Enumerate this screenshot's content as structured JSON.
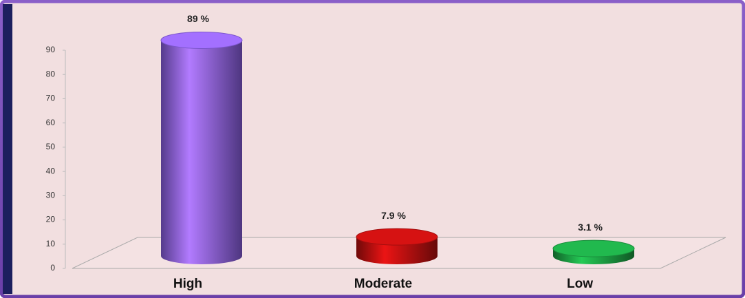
{
  "chart_data": {
    "type": "cylinder-bar",
    "categories": [
      "High",
      "Moderate",
      "Low"
    ],
    "values": [
      89,
      7.9,
      3.1
    ],
    "value_labels": [
      "89 %",
      "7.9 %",
      "3.1 %"
    ],
    "colors": [
      "#9b6bff",
      "#cc1111",
      "#1fb04a"
    ],
    "ylim": [
      0,
      90
    ],
    "yticks": [
      0,
      10,
      20,
      30,
      40,
      50,
      60,
      70,
      80,
      90
    ]
  }
}
